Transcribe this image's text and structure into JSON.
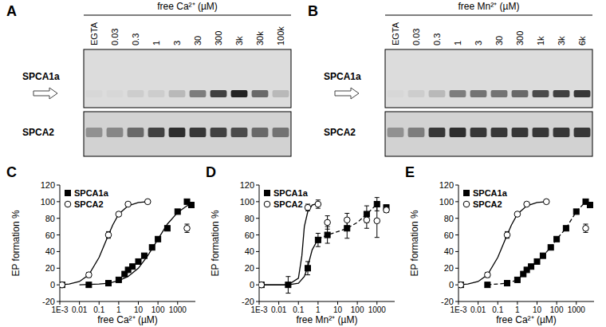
{
  "gels": [
    {
      "title": "A",
      "header": "free Ca²⁺ (µM)",
      "lanes": [
        "EGTA",
        "0.03",
        "0.3",
        "1",
        "3",
        "30",
        "300",
        "3k",
        "30k",
        "100k"
      ],
      "rows": [
        {
          "name": "SPCA1a",
          "intensity": [
            0.05,
            0.05,
            0.1,
            0.1,
            0.2,
            0.5,
            0.8,
            0.95,
            0.6,
            0.2
          ]
        },
        {
          "name": "SPCA2",
          "intensity": [
            0.4,
            0.45,
            0.6,
            0.8,
            0.9,
            0.85,
            0.8,
            0.75,
            0.6,
            0.55
          ]
        }
      ]
    },
    {
      "title": "B",
      "header": "free Mn²⁺ (µM)",
      "lanes": [
        "EGTA",
        "0.03",
        "0.3",
        "1",
        "3",
        "30",
        "300",
        "1k",
        "3k",
        "6k"
      ],
      "rows": [
        {
          "name": "SPCA1a",
          "intensity": [
            0.05,
            0.1,
            0.2,
            0.5,
            0.55,
            0.55,
            0.6,
            0.75,
            0.8,
            0.85
          ]
        },
        {
          "name": "SPCA2",
          "intensity": [
            0.4,
            0.5,
            0.85,
            0.9,
            0.85,
            0.85,
            0.85,
            0.85,
            0.85,
            0.85
          ]
        }
      ]
    }
  ],
  "chart_data": [
    {
      "type": "scatter",
      "title": "C",
      "x_label": "free Ca²⁺ (µM)",
      "y_label": "EP formation %",
      "log": "x",
      "grid": false,
      "legend": "top-left",
      "xlim": [
        0.001,
        8000
      ],
      "xticks": [
        {
          "value": 0.001,
          "label": "1E-3"
        },
        0.01,
        0.1,
        1,
        10,
        100,
        1000
      ],
      "ylim": [
        -20,
        120
      ],
      "yticks": [
        -20,
        0,
        20,
        40,
        60,
        80,
        100,
        120
      ],
      "series": [
        {
          "name": "SPCA1a",
          "color": "#000000",
          "marker": "square",
          "x": [
            0.0013,
            0.03,
            0.3,
            1,
            2,
            3,
            5,
            10,
            20,
            50,
            100,
            300,
            1000,
            3000,
            5000
          ],
          "values": [
            0,
            0,
            2,
            6,
            13,
            18,
            22,
            28,
            35,
            45,
            55,
            68,
            88,
            100,
            96
          ],
          "errors": [
            2,
            1,
            1,
            1,
            1,
            1,
            1,
            1,
            1,
            1,
            1,
            1,
            2,
            2,
            2
          ],
          "fits": [
            {
              "line_style": "solid",
              "x": [
                0.01,
                0.1,
                0.3,
                1,
                3,
                10,
                30,
                100,
                300,
                1000,
                3000,
                5000
              ],
              "values": [
                0,
                1,
                2,
                5,
                10,
                20,
                35,
                55,
                73,
                87,
                95,
                97
              ]
            }
          ]
        },
        {
          "name": "SPCA2",
          "color": "#000000",
          "marker": "circle-open",
          "x": [
            0.0013,
            0.03,
            0.3,
            1,
            3,
            30,
            3000
          ],
          "values": [
            0,
            12,
            60,
            85,
            97,
            100,
            68
          ],
          "errors": [
            3,
            3,
            4,
            2,
            2,
            1,
            5
          ],
          "fits": [
            {
              "line_style": "solid",
              "x": [
                0.001,
                0.003,
                0.01,
                0.03,
                0.1,
                0.2,
                0.3,
                0.5,
                1,
                3,
                10,
                30
              ],
              "values": [
                0,
                1,
                4,
                12,
                33,
                50,
                60,
                72,
                85,
                95,
                99,
                100
              ]
            }
          ]
        }
      ]
    },
    {
      "type": "scatter",
      "title": "D",
      "x_label": "free Mn²⁺ (µM)",
      "y_label": "EP formation %",
      "log": "x",
      "grid": false,
      "legend": "top-left",
      "xlim": [
        0.001,
        8000
      ],
      "xticks": [
        {
          "value": 0.001,
          "label": "1E-3"
        },
        0.01,
        0.1,
        1,
        10,
        100,
        1000
      ],
      "ylim": [
        -20,
        120
      ],
      "yticks": [
        -20,
        0,
        20,
        40,
        60,
        80,
        100,
        120
      ],
      "series": [
        {
          "name": "SPCA1a",
          "color": "#000000",
          "marker": "square",
          "x": [
            0.0013,
            0.03,
            0.3,
            1,
            3,
            30,
            300,
            1000,
            3000
          ],
          "values": [
            0,
            0,
            20,
            54,
            60,
            68,
            85,
            97,
            93
          ],
          "errors": [
            3,
            10,
            8,
            8,
            10,
            12,
            10,
            8,
            3
          ],
          "fits": [
            {
              "line_style": "solid",
              "x": [
                0.001,
                0.03,
                0.1,
                0.2,
                0.3,
                0.5,
                1
              ],
              "values": [
                0,
                0,
                2,
                10,
                22,
                42,
                55
              ]
            },
            {
              "line_style": "dashed",
              "x": [
                1,
                3,
                10,
                30,
                100,
                300,
                1000
              ],
              "values": [
                55,
                60,
                64,
                68,
                75,
                85,
                97
              ]
            }
          ]
        },
        {
          "name": "SPCA2",
          "color": "#000000",
          "marker": "circle-open",
          "x": [
            0.0013,
            0.3,
            1,
            3,
            30,
            300,
            1000,
            3000
          ],
          "values": [
            0,
            93,
            97,
            75,
            78,
            78,
            77,
            90
          ],
          "errors": [
            3,
            4,
            5,
            8,
            8,
            10,
            20,
            3
          ],
          "fits": [
            {
              "line_style": "solid",
              "x": [
                0.001,
                0.03,
                0.1,
                0.15,
                0.2,
                0.3,
                0.5,
                1
              ],
              "values": [
                0,
                0,
                8,
                35,
                70,
                88,
                96,
                98
              ]
            }
          ]
        }
      ]
    },
    {
      "type": "scatter",
      "title": "E",
      "x_label": "free Ca²⁺ (µM)",
      "y_label": "EP formation %",
      "log": "x",
      "grid": false,
      "legend": "top-left",
      "xlim": [
        0.001,
        8000
      ],
      "xticks": [
        {
          "value": 0.001,
          "label": "1E-3"
        },
        0.01,
        0.1,
        1,
        10,
        100,
        1000
      ],
      "ylim": [
        -20,
        120
      ],
      "yticks": [
        -20,
        0,
        20,
        40,
        60,
        80,
        100,
        120
      ],
      "series": [
        {
          "name": "SPCA1a",
          "color": "#000000",
          "marker": "square",
          "x": [
            0.0013,
            0.03,
            0.3,
            1,
            2,
            3,
            5,
            10,
            20,
            50,
            100,
            300,
            1000,
            3000,
            5000
          ],
          "values": [
            0,
            0,
            2,
            6,
            13,
            18,
            22,
            28,
            35,
            45,
            55,
            68,
            88,
            100,
            96
          ],
          "errors": [
            2,
            1,
            1,
            1,
            1,
            1,
            1,
            1,
            1,
            1,
            1,
            1,
            2,
            2,
            2
          ],
          "fits": [
            {
              "line_style": "dashed",
              "x": [
                0.03,
                0.3,
                1,
                2,
                3,
                5,
                10,
                20,
                50,
                100,
                300,
                1000,
                3000,
                5000
              ],
              "values": [
                0,
                2,
                6,
                13,
                18,
                22,
                28,
                35,
                45,
                55,
                68,
                88,
                100,
                96
              ]
            }
          ]
        },
        {
          "name": "SPCA2",
          "color": "#000000",
          "marker": "circle-open",
          "x": [
            0.0013,
            0.03,
            0.3,
            1,
            3,
            30,
            3000
          ],
          "values": [
            0,
            12,
            60,
            85,
            97,
            100,
            68
          ],
          "errors": [
            3,
            3,
            4,
            2,
            2,
            1,
            5
          ],
          "fits": [
            {
              "line_style": "solid",
              "x": [
                0.001,
                0.003,
                0.01,
                0.03,
                0.1,
                0.2,
                0.3,
                0.5,
                1,
                3,
                10,
                30
              ],
              "values": [
                0,
                1,
                4,
                12,
                33,
                50,
                60,
                72,
                85,
                95,
                99,
                100
              ]
            }
          ]
        }
      ]
    }
  ]
}
